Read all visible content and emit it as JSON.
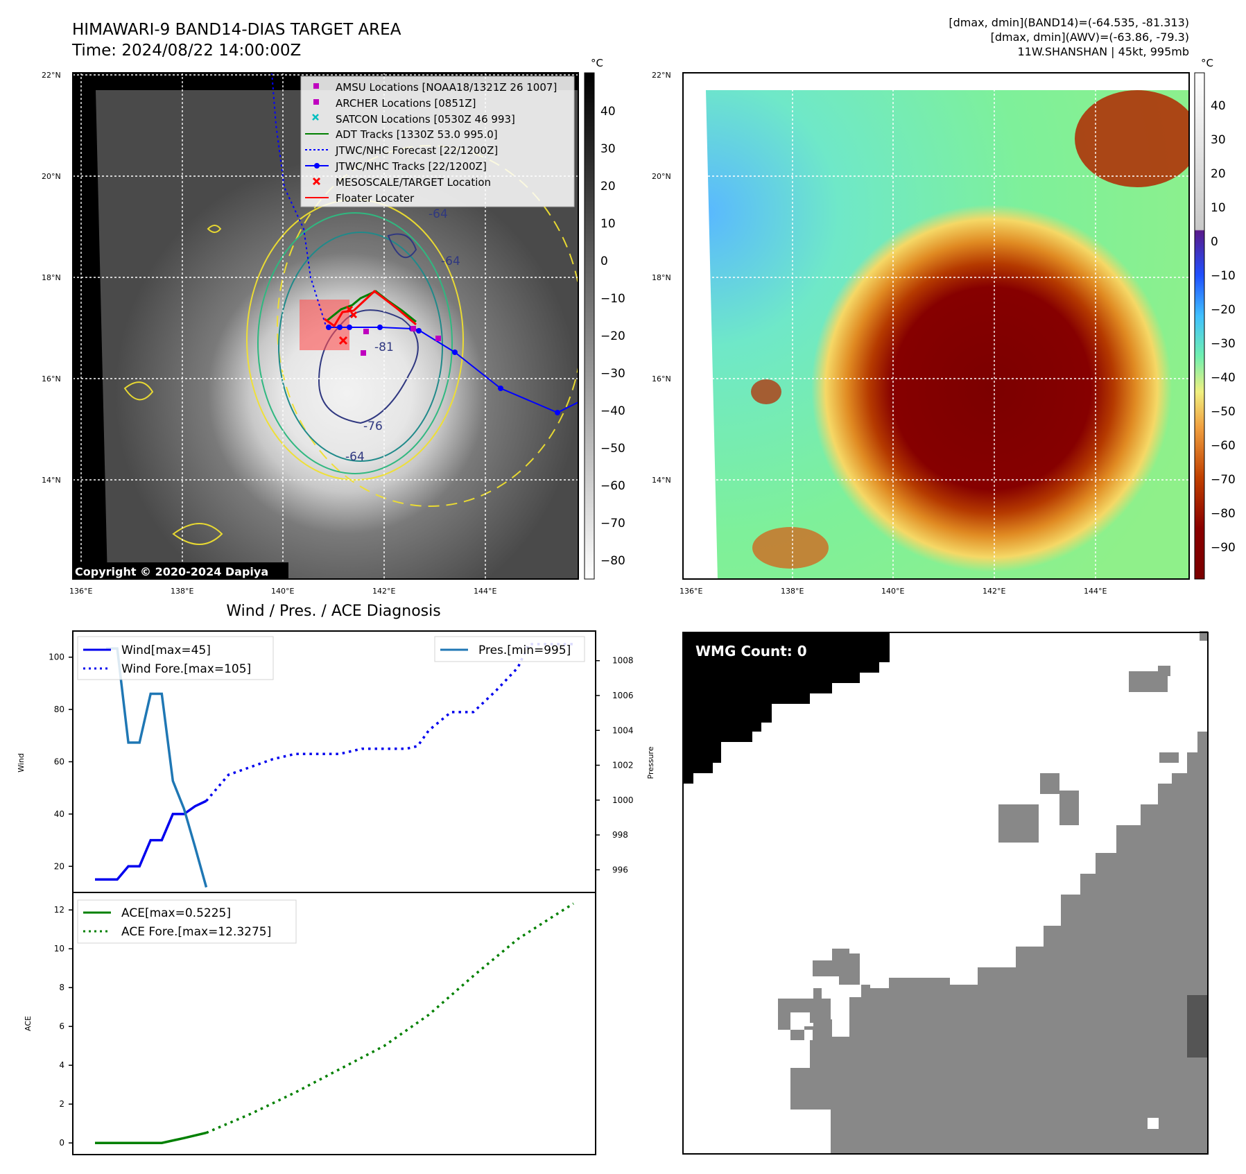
{
  "header": {
    "title_line1": "HIMAWARI-9 BAND14-DIAS TARGET AREA",
    "title_line2": "Time: 2024/08/22 14:00:00Z",
    "info_line1": "[dmax, dmin](BAND14)=(-64.535, -81.313)",
    "info_line2": "[dmax, dmin](AWV)=(-63.86, -79.3)",
    "info_line3": "11W.SHANSHAN | 45kt, 995mb"
  },
  "map": {
    "lat_labels": [
      "22°N",
      "20°N",
      "18°N",
      "16°N",
      "14°N"
    ],
    "lon_labels": [
      "136°E",
      "138°E",
      "140°E",
      "142°E",
      "144°E"
    ],
    "copyright": "Copyright © 2020-2024 Dapiya",
    "contour_labels": [
      "-64",
      "-64",
      "-81",
      "-76",
      "-64"
    ],
    "colors": {
      "adt": "#008000",
      "jtwc": "#0000ff",
      "target": "#ff0000",
      "amsu": "#bf00bf",
      "satcon": "#00bfbf"
    },
    "legend": [
      "AMSU Locations [NOAA18/1321Z 26 1007]",
      "ARCHER Locations [0851Z]",
      "SATCON Locations [0530Z 46 993]",
      "ADT Tracks [1330Z 53.0 995.0]",
      "JTWC/NHC Forecast [22/1200Z]",
      "JTWC/NHC Tracks [22/1200Z]",
      "MESOSCALE/TARGET Location",
      "Floater Locater"
    ]
  },
  "colorbar_gray": {
    "unit": "°C",
    "ticks": [
      "40",
      "30",
      "20",
      "10",
      "0",
      "−10",
      "−20",
      "−30",
      "−40",
      "−50",
      "−60",
      "−70",
      "−80"
    ]
  },
  "colorbar_color": {
    "unit": "°C",
    "ticks": [
      "40",
      "30",
      "20",
      "10",
      "0",
      "−10",
      "−20",
      "−30",
      "−40",
      "−50",
      "−60",
      "−70",
      "−80",
      "−90"
    ]
  },
  "diag": {
    "title": "Wind / Pres. / ACE Diagnosis",
    "wmg": "WMG Count: 0"
  },
  "chart_data": [
    {
      "type": "line",
      "title": "Wind / Pres. / ACE Diagnosis",
      "ylabel": "Wind",
      "y2label": "Pressure",
      "ylim": [
        10,
        110
      ],
      "y2lim": [
        994.7,
        1009.7
      ],
      "yticks": [
        "20",
        "40",
        "60",
        "80",
        "100"
      ],
      "y2ticks": [
        "996",
        "998",
        "1000",
        "1002",
        "1004",
        "1006",
        "1008"
      ],
      "legend_left": [
        "Wind[max=45]",
        "Wind Fore.[max=105]"
      ],
      "legend_right": [
        "Pres.[min=995]"
      ],
      "series": [
        {
          "name": "Wind[max=45]",
          "color": "#0000ee",
          "style": "solid",
          "x": [
            0,
            1,
            2,
            3,
            4,
            5,
            6,
            7,
            8,
            9,
            10
          ],
          "values": [
            15,
            15,
            15,
            20,
            20,
            30,
            30,
            40,
            40,
            43,
            45
          ]
        },
        {
          "name": "Wind Fore.[max=105]",
          "color": "#0000ee",
          "style": "dotted",
          "x": [
            10,
            12,
            14,
            16,
            18,
            20,
            22,
            24,
            26,
            28,
            29,
            30,
            32,
            34,
            36,
            38,
            39,
            41,
            43
          ],
          "values": [
            45,
            55,
            58,
            61,
            63,
            63,
            63,
            65,
            65,
            65,
            66,
            72,
            79,
            79,
            87,
            96,
            105,
            105,
            105
          ]
        },
        {
          "name": "Pres.[min=995]",
          "color": "#1f77b4",
          "style": "solid",
          "x": [
            1,
            2,
            3,
            4,
            5,
            6,
            7,
            8,
            9,
            10
          ],
          "values": [
            1008.7,
            1008.7,
            1003.3,
            1003.3,
            1006.1,
            1006.1,
            1001.1,
            999.5,
            997.3,
            995.0
          ]
        }
      ]
    },
    {
      "type": "line",
      "ylabel": "ACE",
      "ylim": [
        -0.6,
        12.9
      ],
      "yticks": [
        "0",
        "2",
        "4",
        "6",
        "8",
        "10",
        "12"
      ],
      "legend": [
        "ACE[max=0.5225]",
        "ACE Fore.[max=12.3275]"
      ],
      "series": [
        {
          "name": "ACE[max=0.5225]",
          "color": "#008000",
          "style": "solid",
          "x": [
            0,
            2,
            4,
            6,
            8,
            10
          ],
          "values": [
            0,
            0,
            0,
            0,
            0.25,
            0.5225
          ]
        },
        {
          "name": "ACE Fore.[max=12.3275]",
          "color": "#008000",
          "style": "dotted",
          "x": [
            10,
            14,
            18,
            22,
            26,
            30,
            34,
            38,
            41,
            43
          ],
          "values": [
            0.5225,
            1.5,
            2.6,
            3.8,
            5.0,
            6.6,
            8.6,
            10.5,
            11.6,
            12.3275
          ]
        }
      ]
    }
  ]
}
